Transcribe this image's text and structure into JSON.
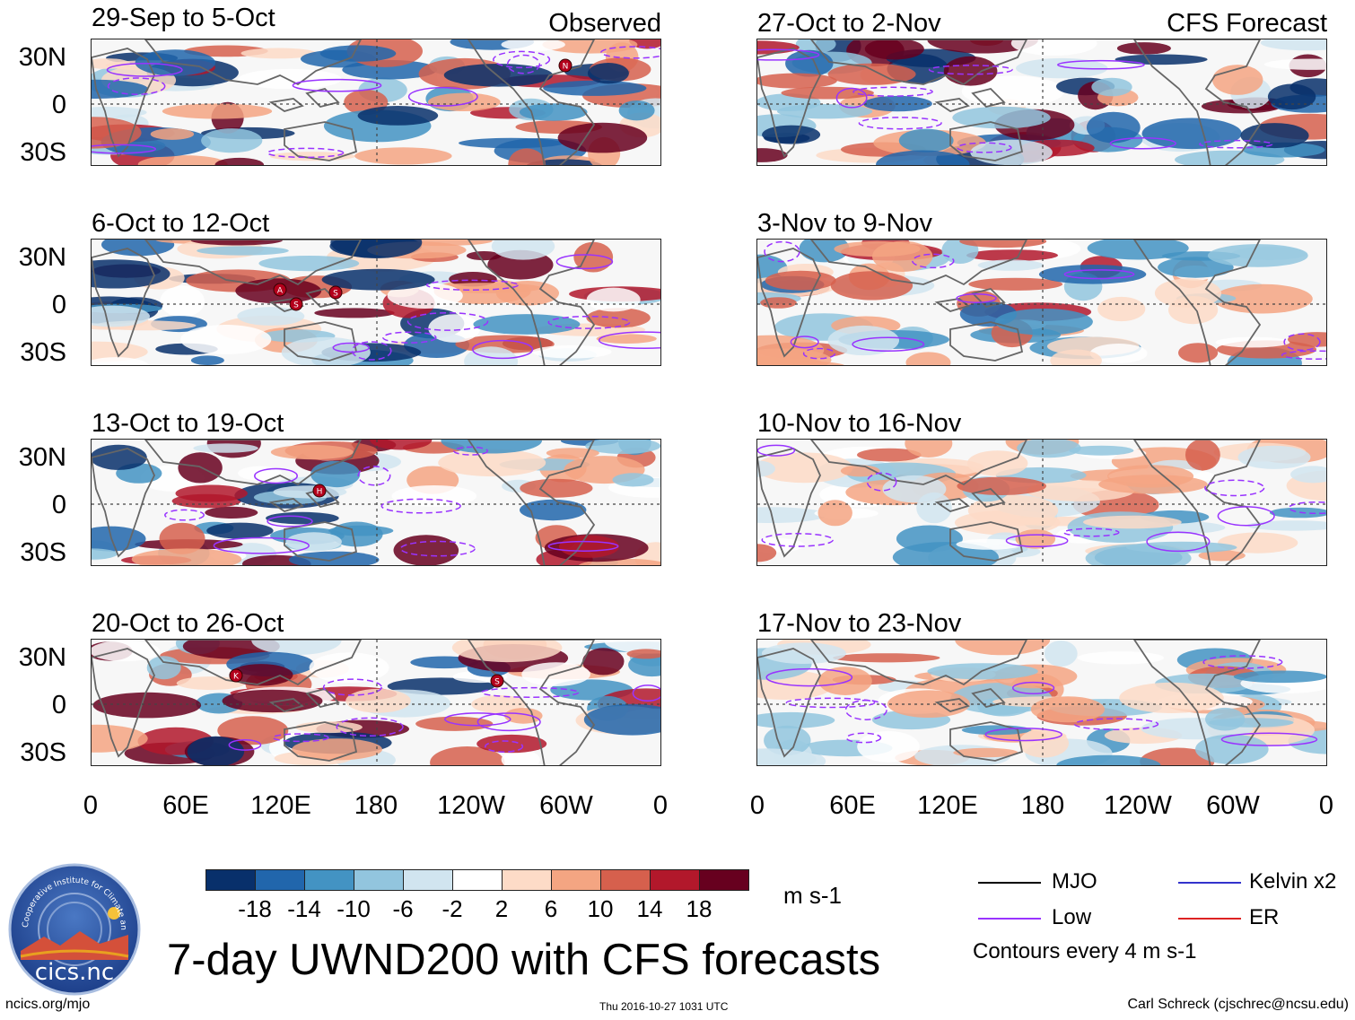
{
  "headers": {
    "observed": "Observed",
    "forecast": "CFS Forecast"
  },
  "panels": [
    {
      "title": "29-Sep to 5-Oct",
      "column": "observed"
    },
    {
      "title": "6-Oct to 12-Oct",
      "column": "observed"
    },
    {
      "title": "13-Oct to 19-Oct",
      "column": "observed"
    },
    {
      "title": "20-Oct to 26-Oct",
      "column": "observed"
    },
    {
      "title": "27-Oct to 2-Nov",
      "column": "forecast"
    },
    {
      "title": "3-Nov to 9-Nov",
      "column": "forecast"
    },
    {
      "title": "10-Nov to 16-Nov",
      "column": "forecast"
    },
    {
      "title": "17-Nov to 23-Nov",
      "column": "forecast"
    }
  ],
  "lat_labels": [
    "30N",
    "0",
    "30S"
  ],
  "lon_labels": [
    "0",
    "60E",
    "120E",
    "180",
    "120W",
    "60W",
    "0"
  ],
  "storm_markers": [
    {
      "panel": 0,
      "label": "N"
    },
    {
      "panel": 1,
      "label": "A"
    },
    {
      "panel": 1,
      "label": "S"
    },
    {
      "panel": 1,
      "label": "S"
    },
    {
      "panel": 2,
      "label": "H"
    },
    {
      "panel": 3,
      "label": "K"
    },
    {
      "panel": 3,
      "label": "S"
    }
  ],
  "colorbar": {
    "colors": [
      "#08306b",
      "#2166ac",
      "#4393c3",
      "#92c5de",
      "#d1e5f0",
      "#ffffff",
      "#fddbc7",
      "#f4a582",
      "#d6604d",
      "#b2182b",
      "#67001f"
    ],
    "labels": [
      "-18",
      "-14",
      "-10",
      "-6",
      "-2",
      "2",
      "6",
      "10",
      "14",
      "18"
    ],
    "units": "m s-1"
  },
  "legend": {
    "items": [
      {
        "label": "MJO",
        "color": "#000000"
      },
      {
        "label": "Kelvin x2",
        "color": "#3333cc"
      },
      {
        "label": "Low",
        "color": "#9933ff"
      },
      {
        "label": "ER",
        "color": "#dd2222"
      }
    ],
    "note": "Contours every 4 m s-1"
  },
  "logo_text": "cics.nc",
  "logo_arc_text": "Cooperative Institute for Climate and Satellites",
  "main_title": "7-day UWND200 with CFS forecasts",
  "footer": {
    "left": "ncics.org/mjo",
    "center": "Thu 2016-10-27 1031 UTC",
    "right": "Carl Schreck (cjschrec@ncsu.edu)"
  }
}
